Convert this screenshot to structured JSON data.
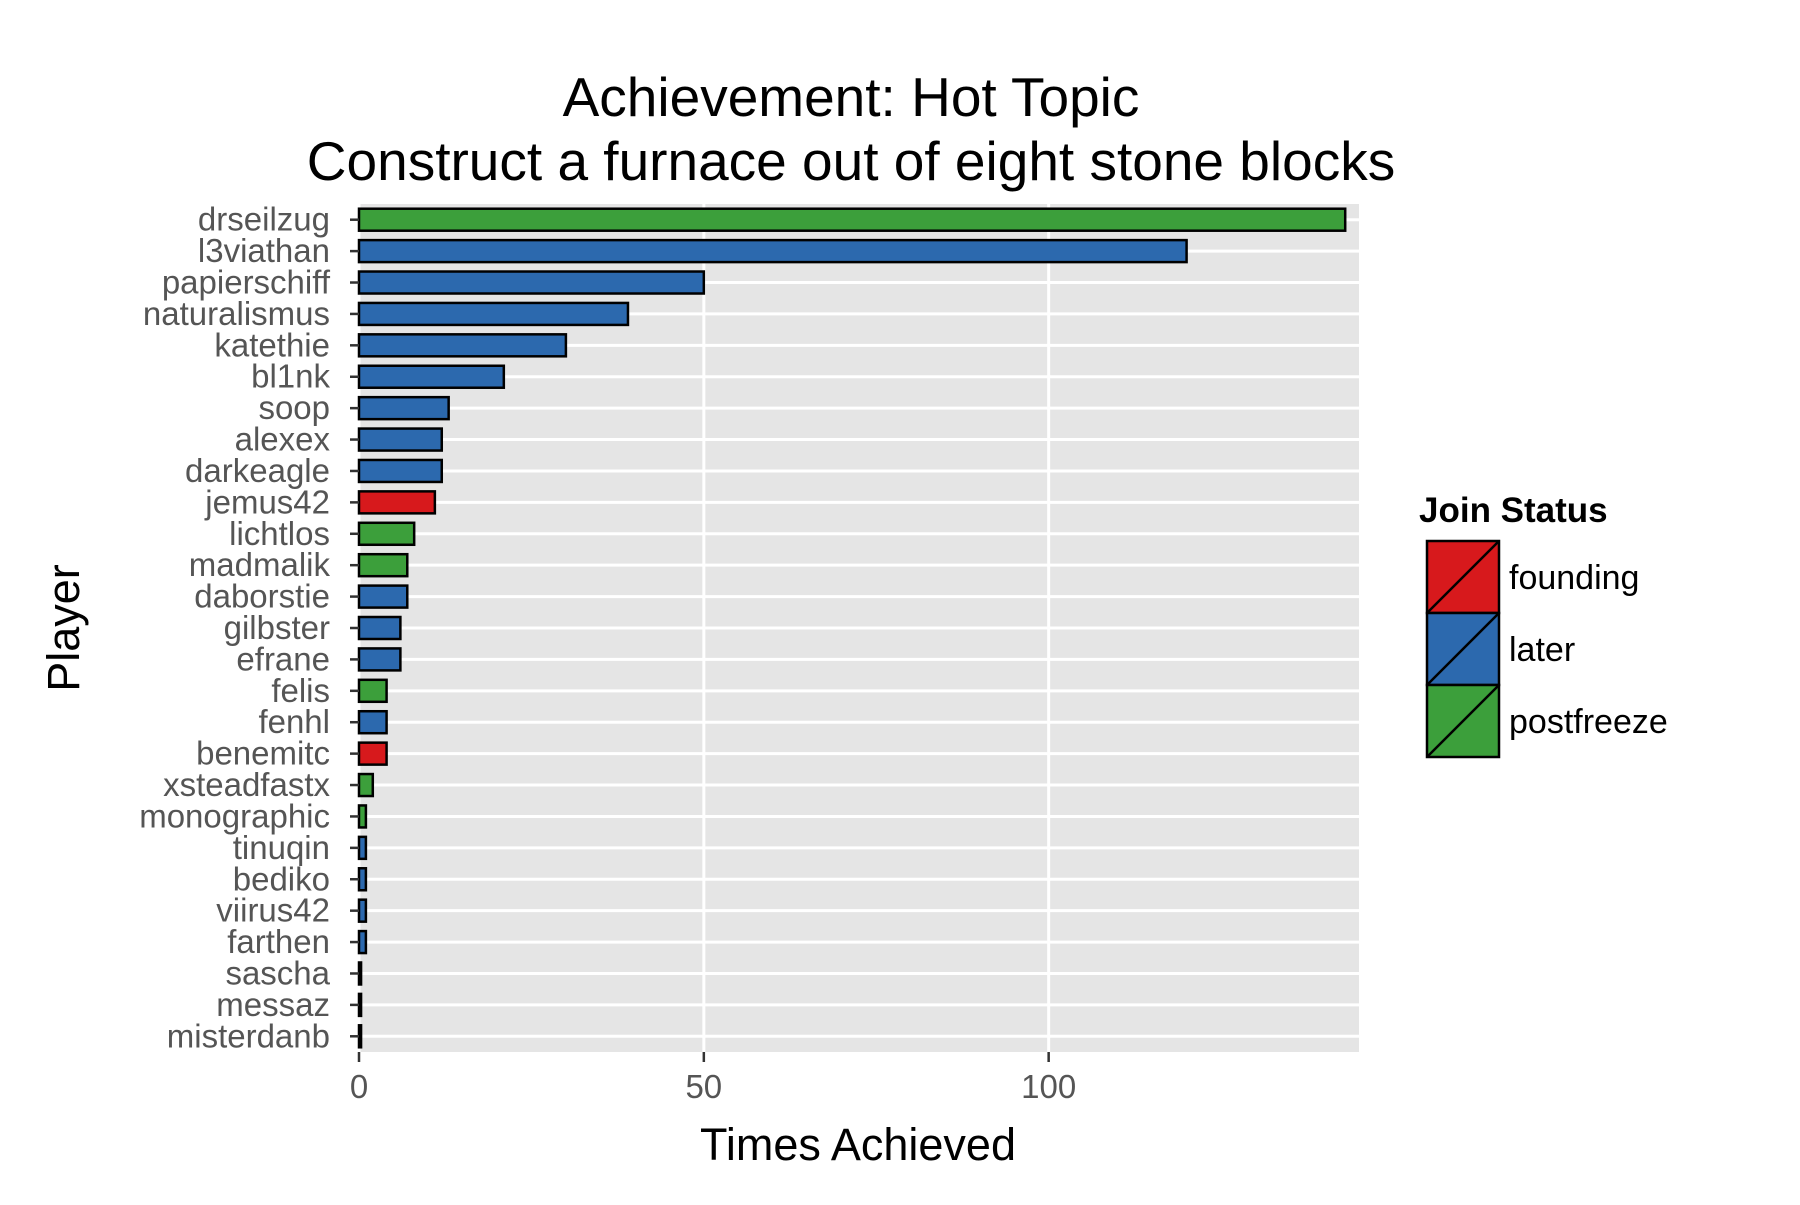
{
  "chart_data": {
    "type": "bar",
    "orientation": "horizontal",
    "title": "Achievement: Hot Topic",
    "subtitle": "Construct a furnace out of eight stone blocks",
    "xlabel": "Times Achieved",
    "ylabel": "Player",
    "xlim": [
      0,
      145
    ],
    "xticks": [
      0,
      50,
      100
    ],
    "grid": true,
    "legend_position": "right",
    "legend": {
      "title": "Join Status",
      "entries": [
        {
          "name": "founding",
          "color": "#d7191c"
        },
        {
          "name": "later",
          "color": "#2c69ae"
        },
        {
          "name": "postfreeze",
          "color": "#3c9f3b"
        }
      ]
    },
    "categories": [
      "drseilzug",
      "l3viathan",
      "papierschiff",
      "naturalismus",
      "katethie",
      "bl1nk",
      "soop",
      "alexex",
      "darkeagle",
      "jemus42",
      "lichtlos",
      "madmalik",
      "daborstie",
      "gilbster",
      "efrane",
      "felis",
      "fenhl",
      "benemitc",
      "xsteadfastx",
      "monographic",
      "tinuqin",
      "bediko",
      "viirus42",
      "farthen",
      "sascha",
      "messaz",
      "misterdanb"
    ],
    "values": [
      143,
      120,
      50,
      39,
      30,
      21,
      13,
      12,
      12,
      11,
      8,
      7,
      7,
      6,
      6,
      4,
      4,
      4,
      2,
      1,
      1,
      1,
      1,
      1,
      0.3,
      0.3,
      0.3
    ],
    "groups": [
      "postfreeze",
      "later",
      "later",
      "later",
      "later",
      "later",
      "later",
      "later",
      "later",
      "founding",
      "postfreeze",
      "postfreeze",
      "later",
      "later",
      "later",
      "postfreeze",
      "later",
      "founding",
      "postfreeze",
      "postfreeze",
      "later",
      "later",
      "later",
      "later",
      "later",
      "later",
      "later"
    ]
  }
}
